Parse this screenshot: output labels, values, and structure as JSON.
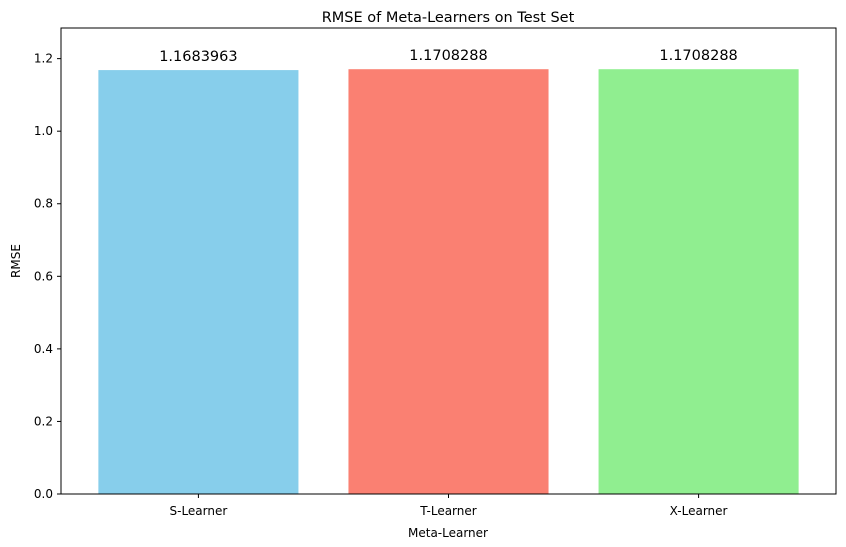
{
  "chart_data": {
    "type": "bar",
    "title": "RMSE of Meta-Learners on Test Set",
    "xlabel": "Meta-Learner",
    "ylabel": "RMSE",
    "categories": [
      "S-Learner",
      "T-Learner",
      "X-Learner"
    ],
    "values": [
      1.1683963,
      1.1708288,
      1.1708288
    ],
    "data_labels": [
      "1.1683963",
      "1.1708288",
      "1.1708288"
    ],
    "colors": [
      "#87ceeb",
      "#fa8072",
      "#90ee90"
    ],
    "ylim": [
      0,
      1.2844
    ],
    "yticks": [
      0.0,
      0.2,
      0.4,
      0.6,
      0.8,
      1.0,
      1.2
    ],
    "ytick_labels": [
      "0.0",
      "0.2",
      "0.4",
      "0.6",
      "0.8",
      "1.0",
      "1.2"
    ],
    "grid": false,
    "legend": "none"
  }
}
